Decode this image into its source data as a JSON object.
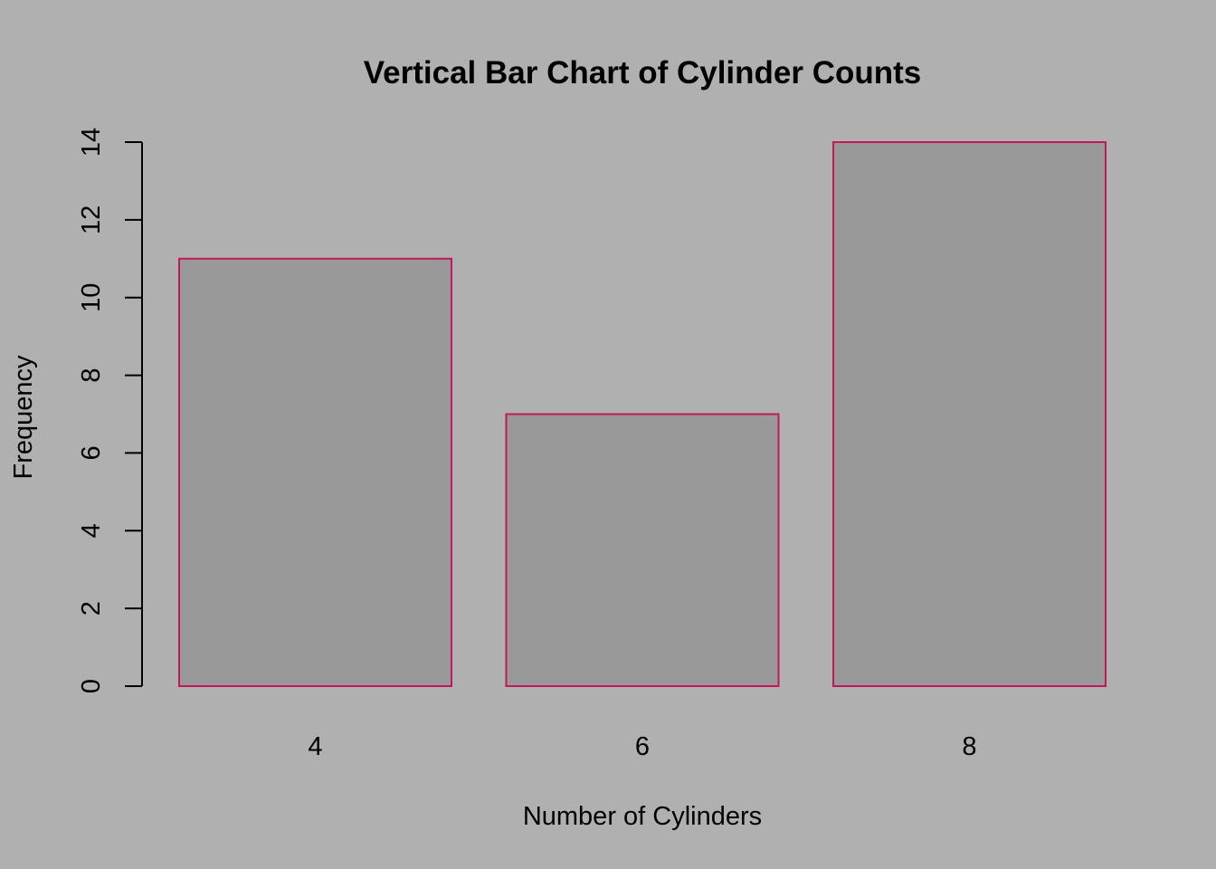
{
  "colors": {
    "background": "#b0b0b0",
    "bar_fill": "#999999",
    "bar_border": "#c2185b",
    "axis": "#000000",
    "text": "#000000"
  },
  "chart_data": {
    "type": "bar",
    "title": "Vertical Bar Chart of Cylinder Counts",
    "xlabel": "Number of Cylinders",
    "ylabel": "Frequency",
    "categories": [
      "4",
      "6",
      "8"
    ],
    "values": [
      11,
      7,
      14
    ],
    "ylim": [
      0,
      14
    ],
    "yticks": [
      0,
      2,
      4,
      6,
      8,
      10,
      12,
      14
    ],
    "grid": false,
    "legend": "none"
  }
}
